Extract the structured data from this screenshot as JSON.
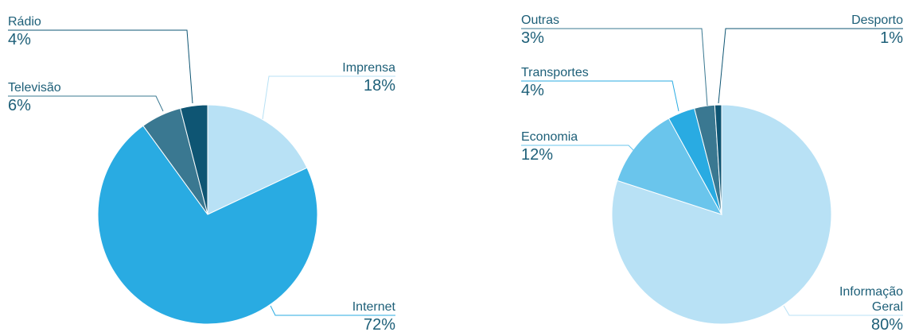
{
  "chart_data": [
    {
      "type": "pie",
      "categories": [
        "Imprensa",
        "Internet",
        "Televisão",
        "Rádio"
      ],
      "values": [
        18,
        72,
        6,
        4
      ],
      "value_labels": [
        "18%",
        "72%",
        "6%",
        "4%"
      ],
      "colors": [
        "#b8e1f5",
        "#29abe2",
        "#3a7891",
        "#0e5573"
      ]
    },
    {
      "type": "pie",
      "categories": [
        "Informação Geral",
        "Economia",
        "Transportes",
        "Outras",
        "Desporto"
      ],
      "values": [
        80,
        12,
        4,
        3,
        1
      ],
      "value_labels": [
        "80%",
        "12%",
        "4%",
        "3%",
        "1%"
      ],
      "colors": [
        "#b8e1f5",
        "#6ac5ec",
        "#29abe2",
        "#3a7891",
        "#0e5573"
      ]
    }
  ]
}
